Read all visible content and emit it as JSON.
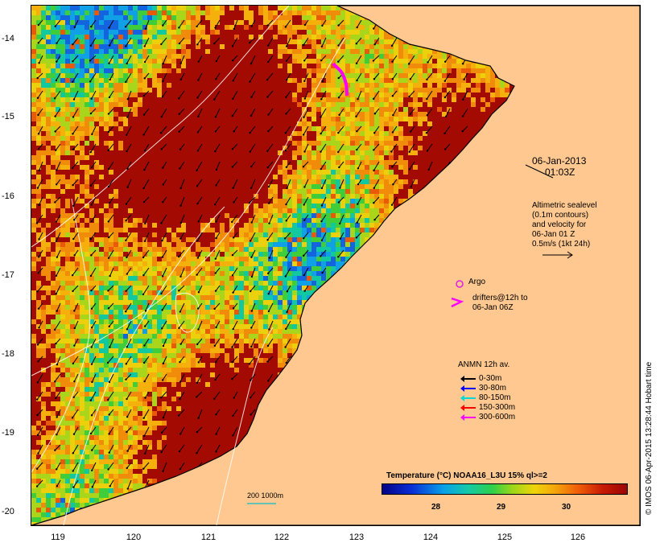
{
  "map": {
    "date_line1": "06-Jan-2013",
    "date_line2": "01:03Z",
    "altimetric": [
      "Altimetric sealevel",
      "(0.1m contours)",
      "and velocity for",
      "06-Jan 01 Z",
      "0.5m/s (1kt 24h)"
    ],
    "argo_label": "Argo",
    "drifters_label": [
      "drifters@12h to",
      "06-Jan 06Z"
    ],
    "anmn_title": "ANMN 12h av.",
    "anmn_legend": [
      {
        "label": "0-30m",
        "color": "#000000"
      },
      {
        "label": "30-80m",
        "color": "#0000ff"
      },
      {
        "label": "80-150m",
        "color": "#00d8d8"
      },
      {
        "label": "150-300m",
        "color": "#ff0000"
      },
      {
        "label": "300-600m",
        "color": "#ff00ff"
      }
    ],
    "bathy_label": "200  1000m",
    "colorbar_title": "Temperature (°C) NOAA16_L3U 15% ql>=2",
    "colorbar_ticks": [
      "28",
      "29",
      "30"
    ],
    "lat_ticks": [
      "-14",
      "-15",
      "-16",
      "-17",
      "-18",
      "-19",
      "-20"
    ],
    "lon_ticks": [
      "119",
      "120",
      "121",
      "122",
      "123",
      "124",
      "125",
      "126"
    ],
    "credit": "© IMOS 06-Apr-2015 13:28:44 Hobart time",
    "colors": {
      "land": "#fec890",
      "warm": "#a30a02",
      "argo": "#e020e0",
      "drifter": "#ff00ff"
    }
  }
}
